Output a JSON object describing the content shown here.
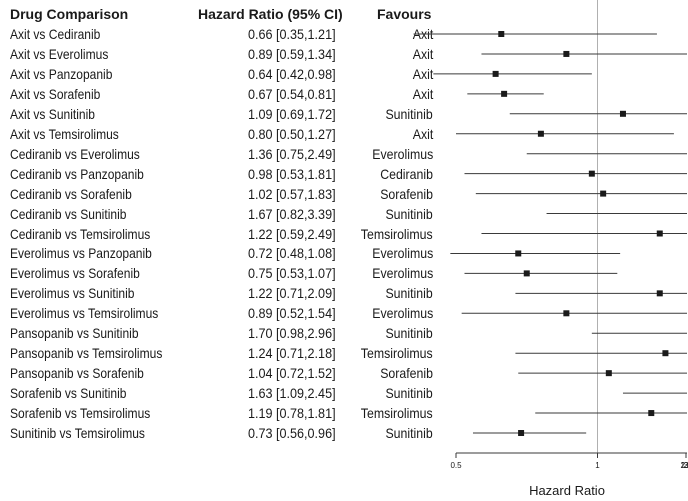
{
  "headers": {
    "comparison": "Drug Comparison",
    "hazard_ratio": "Hazard Ratio (95% CI)",
    "favours": "Favours"
  },
  "chart_data": {
    "type": "forest",
    "xlabel": "Hazard Ratio",
    "xticks": [
      0.5,
      1,
      1.5,
      2,
      2.5,
      3
    ],
    "xtick_labels": [
      "0.5",
      "1",
      "1.5",
      "2",
      "2.5",
      "3"
    ],
    "xlim": [
      0.45,
      3.0
    ],
    "reference_line": 1,
    "rows": [
      {
        "comparison": "Axit vs Cediranib",
        "hr": 0.66,
        "lo": 0.35,
        "hi": 1.21,
        "hr_text": "0.66 [0.35,1.21]",
        "favours": "Axit"
      },
      {
        "comparison": "Axit vs Everolimus",
        "hr": 0.89,
        "lo": 0.59,
        "hi": 1.34,
        "hr_text": "0.89 [0.59,1.34]",
        "favours": "Axit"
      },
      {
        "comparison": "Axit vs Panzopanib",
        "hr": 0.64,
        "lo": 0.42,
        "hi": 0.98,
        "hr_text": "0.64 [0.42,0.98]",
        "favours": "Axit"
      },
      {
        "comparison": "Axit vs Sorafenib",
        "hr": 0.67,
        "lo": 0.54,
        "hi": 0.81,
        "hr_text": "0.67 [0.54,0.81]",
        "favours": "Axit"
      },
      {
        "comparison": "Axit vs Sunitinib",
        "hr": 1.09,
        "lo": 0.69,
        "hi": 1.72,
        "hr_text": "1.09 [0.69,1.72]",
        "favours": "Sunitinib"
      },
      {
        "comparison": "Axit vs Temsirolimus",
        "hr": 0.8,
        "lo": 0.5,
        "hi": 1.27,
        "hr_text": "0.80 [0.50,1.27]",
        "favours": "Axit"
      },
      {
        "comparison": "Cediranib vs Everolimus",
        "hr": 1.36,
        "lo": 0.75,
        "hi": 2.49,
        "hr_text": "1.36 [0.75,2.49]",
        "favours": "Everolimus"
      },
      {
        "comparison": "Cediranib vs Panzopanib",
        "hr": 0.98,
        "lo": 0.53,
        "hi": 1.81,
        "hr_text": "0.98 [0.53,1.81]",
        "favours": "Cediranib"
      },
      {
        "comparison": "Cediranib vs Sorafenib",
        "hr": 1.02,
        "lo": 0.57,
        "hi": 1.83,
        "hr_text": "1.02 [0.57,1.83]",
        "favours": "Sorafenib"
      },
      {
        "comparison": "Cediranib vs Sunitinib",
        "hr": 1.67,
        "lo": 0.82,
        "hi": 3.39,
        "hr_text": "1.67 [0.82,3.39]",
        "favours": "Sunitinib"
      },
      {
        "comparison": "Cediranib vs Temsirolimus",
        "hr": 1.22,
        "lo": 0.59,
        "hi": 2.49,
        "hr_text": "1.22 [0.59,2.49]",
        "favours": "Temsirolimus"
      },
      {
        "comparison": "Everolimus vs Panzopanib",
        "hr": 0.72,
        "lo": 0.48,
        "hi": 1.08,
        "hr_text": "0.72 [0.48,1.08]",
        "favours": "Everolimus"
      },
      {
        "comparison": "Everolimus vs Sorafenib",
        "hr": 0.75,
        "lo": 0.53,
        "hi": 1.07,
        "hr_text": "0.75 [0.53,1.07]",
        "favours": "Everolimus"
      },
      {
        "comparison": "Everolimus vs Sunitinib",
        "hr": 1.22,
        "lo": 0.71,
        "hi": 2.09,
        "hr_text": "1.22 [0.71,2.09]",
        "favours": "Sunitinib"
      },
      {
        "comparison": "Everolimus vs Temsirolimus",
        "hr": 0.89,
        "lo": 0.52,
        "hi": 1.54,
        "hr_text": "0.89 [0.52,1.54]",
        "favours": "Everolimus"
      },
      {
        "comparison": "Pansopanib vs Sunitinib",
        "hr": 1.7,
        "lo": 0.98,
        "hi": 2.96,
        "hr_text": "1.70 [0.98,2.96]",
        "favours": "Sunitinib"
      },
      {
        "comparison": "Pansopanib vs Temsirolimus",
        "hr": 1.24,
        "lo": 0.71,
        "hi": 2.18,
        "hr_text": "1.24 [0.71,2.18]",
        "favours": "Temsirolimus"
      },
      {
        "comparison": "Pansopanib vs Sorafenib",
        "hr": 1.04,
        "lo": 0.72,
        "hi": 1.52,
        "hr_text": "1.04 [0.72,1.52]",
        "favours": "Sorafenib"
      },
      {
        "comparison": "Sorafenib vs Sunitinib",
        "hr": 1.63,
        "lo": 1.09,
        "hi": 2.45,
        "hr_text": "1.63 [1.09,2.45]",
        "favours": "Sunitinib"
      },
      {
        "comparison": "Sorafenib vs Temsirolimus",
        "hr": 1.19,
        "lo": 0.78,
        "hi": 1.81,
        "hr_text": "1.19 [0.78,1.81]",
        "favours": "Temsirolimus"
      },
      {
        "comparison": "Sunitinib vs Temsirolimus",
        "hr": 0.73,
        "lo": 0.56,
        "hi": 0.96,
        "hr_text": "0.73 [0.56,0.96]",
        "favours": "Sunitinib"
      }
    ]
  }
}
